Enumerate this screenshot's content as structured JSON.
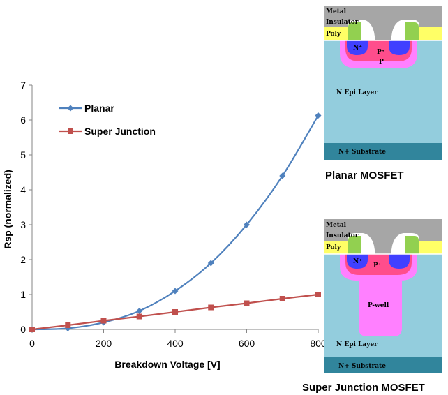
{
  "chart_data": {
    "type": "line",
    "xlabel": "Breakdown Voltage [V]",
    "ylabel": "Rsp (normalized)",
    "xlim": [
      0,
      800
    ],
    "ylim": [
      0,
      7
    ],
    "x_ticks": [
      0,
      200,
      400,
      600,
      800
    ],
    "y_ticks": [
      0,
      1,
      2,
      3,
      4,
      5,
      6,
      7
    ],
    "grid": false,
    "legend": "top-left",
    "series": [
      {
        "name": "Planar",
        "color": "#4f81bd",
        "marker": "diamond",
        "x": [
          0,
          100,
          200,
          300,
          400,
          500,
          600,
          700,
          800
        ],
        "y": [
          0,
          0.03,
          0.2,
          0.53,
          1.1,
          1.9,
          3.0,
          4.4,
          6.13
        ]
      },
      {
        "name": "Super Junction",
        "color": "#c0504d",
        "marker": "square",
        "x": [
          0,
          100,
          200,
          300,
          400,
          500,
          600,
          700,
          800
        ],
        "y": [
          0,
          0.12,
          0.25,
          0.37,
          0.5,
          0.63,
          0.75,
          0.88,
          1.0
        ]
      }
    ]
  },
  "diagrams": {
    "planar": {
      "caption": "Planar MOSFET",
      "labels": {
        "metal": "Metal",
        "insulator": "Insulator",
        "poly": "Poly",
        "n_plus": "N⁺",
        "p_plus": "P⁺",
        "p": "P",
        "n_epi": "N Epi Layer",
        "substrate": "N+ Substrate"
      }
    },
    "super_junction": {
      "caption": "Super Junction MOSFET",
      "labels": {
        "metal": "Metal",
        "insulator": "Insulator",
        "poly": "Poly",
        "n_plus": "N⁺",
        "p_plus": "P⁺",
        "p_well": "P-well",
        "n_epi": "N Epi Layer",
        "substrate": "N+ Substrate"
      }
    }
  },
  "colors": {
    "metal": "#a6a6a6",
    "insulator": "#92d050",
    "poly": "#ffff66",
    "n_plus": "#4040ff",
    "p_plus": "#ff4d8c",
    "p_region": "#ff80ff",
    "epi": "#93cddd",
    "substrate": "#31859c"
  }
}
